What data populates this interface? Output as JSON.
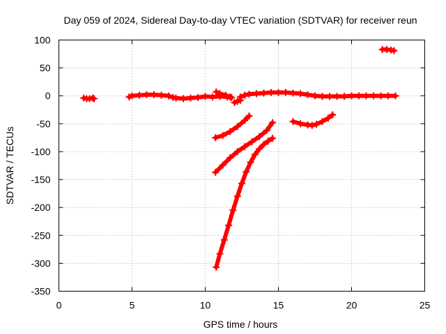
{
  "chart_data": {
    "type": "scatter",
    "title": "Day 059 of 2024, Sidereal Day-to-day VTEC variation (SDTVAR) for receiver reun",
    "xlabel": "GPS time / hours",
    "ylabel": "SDTVAR / TECUs",
    "xlim": [
      0,
      25
    ],
    "ylim": [
      -350,
      100
    ],
    "xticks": [
      0,
      5,
      10,
      15,
      20,
      25
    ],
    "yticks": [
      100,
      50,
      0,
      -50,
      -100,
      -150,
      -200,
      -250,
      -300,
      -350
    ],
    "grid": true,
    "legend": "none",
    "color": "#ff0000",
    "series": [
      {
        "x": [
          1.7,
          1.9,
          2.1,
          2.3,
          2.4
        ],
        "y": [
          -4,
          -5,
          -5,
          -4,
          -5
        ]
      },
      {
        "x": [
          4.8,
          5.0,
          5.5,
          6.0,
          6.5,
          7.0,
          7.5,
          7.8,
          8.0,
          8.5,
          9.0,
          9.5,
          10.0,
          10.5,
          11.0,
          11.5,
          11.8
        ],
        "y": [
          -2,
          0,
          1,
          2,
          2,
          1,
          0,
          -3,
          -4,
          -5,
          -4,
          -3,
          -1,
          -2,
          -1,
          -2,
          -3
        ]
      },
      {
        "x": [
          10.75,
          11.0,
          11.4,
          11.7
        ],
        "y": [
          7,
          4,
          1,
          -2
        ]
      },
      {
        "x": [
          12.0,
          12.2,
          12.4
        ],
        "y": [
          -12,
          -10,
          -8
        ]
      },
      {
        "x": [
          12.4,
          12.7,
          13.0,
          13.5,
          14.0,
          14.5,
          15.0,
          15.5,
          16.0,
          16.5,
          17.0,
          17.5,
          18.0,
          18.5,
          19.0,
          19.5,
          20.0,
          20.5,
          21.0,
          21.5,
          22.0,
          22.5,
          23.0
        ],
        "y": [
          -2,
          1,
          3,
          4,
          5,
          6,
          6,
          6,
          5,
          4,
          2,
          0,
          -1,
          -1,
          -1,
          -1,
          0,
          0,
          0,
          0,
          0,
          0,
          0
        ]
      },
      {
        "x": [
          22.1,
          22.4,
          22.7,
          22.9
        ],
        "y": [
          83,
          83,
          82,
          81
        ]
      },
      {
        "x": [
          10.7,
          11.2,
          11.7,
          12.2,
          12.7,
          13.0
        ],
        "y": [
          -75,
          -71,
          -64,
          -55,
          -44,
          -36
        ]
      },
      {
        "x": [
          10.7,
          11.2,
          11.7,
          12.2,
          12.7,
          13.2,
          13.7,
          14.2,
          14.6
        ],
        "y": [
          -137,
          -124,
          -111,
          -100,
          -91,
          -82,
          -73,
          -62,
          -48
        ]
      },
      {
        "x": [
          10.75,
          11.0,
          11.3,
          11.6,
          11.9,
          12.2,
          12.5,
          12.8,
          13.1,
          13.4,
          13.7,
          14.0,
          14.3,
          14.6
        ],
        "y": [
          -307,
          -283,
          -258,
          -232,
          -205,
          -180,
          -157,
          -136,
          -119,
          -105,
          -95,
          -87,
          -81,
          -76
        ]
      },
      {
        "x": [
          16.0,
          16.5,
          17.0,
          17.3,
          17.6,
          18.0,
          18.4,
          18.7
        ],
        "y": [
          -46,
          -50,
          -52,
          -53,
          -51,
          -46,
          -40,
          -34
        ]
      }
    ]
  }
}
